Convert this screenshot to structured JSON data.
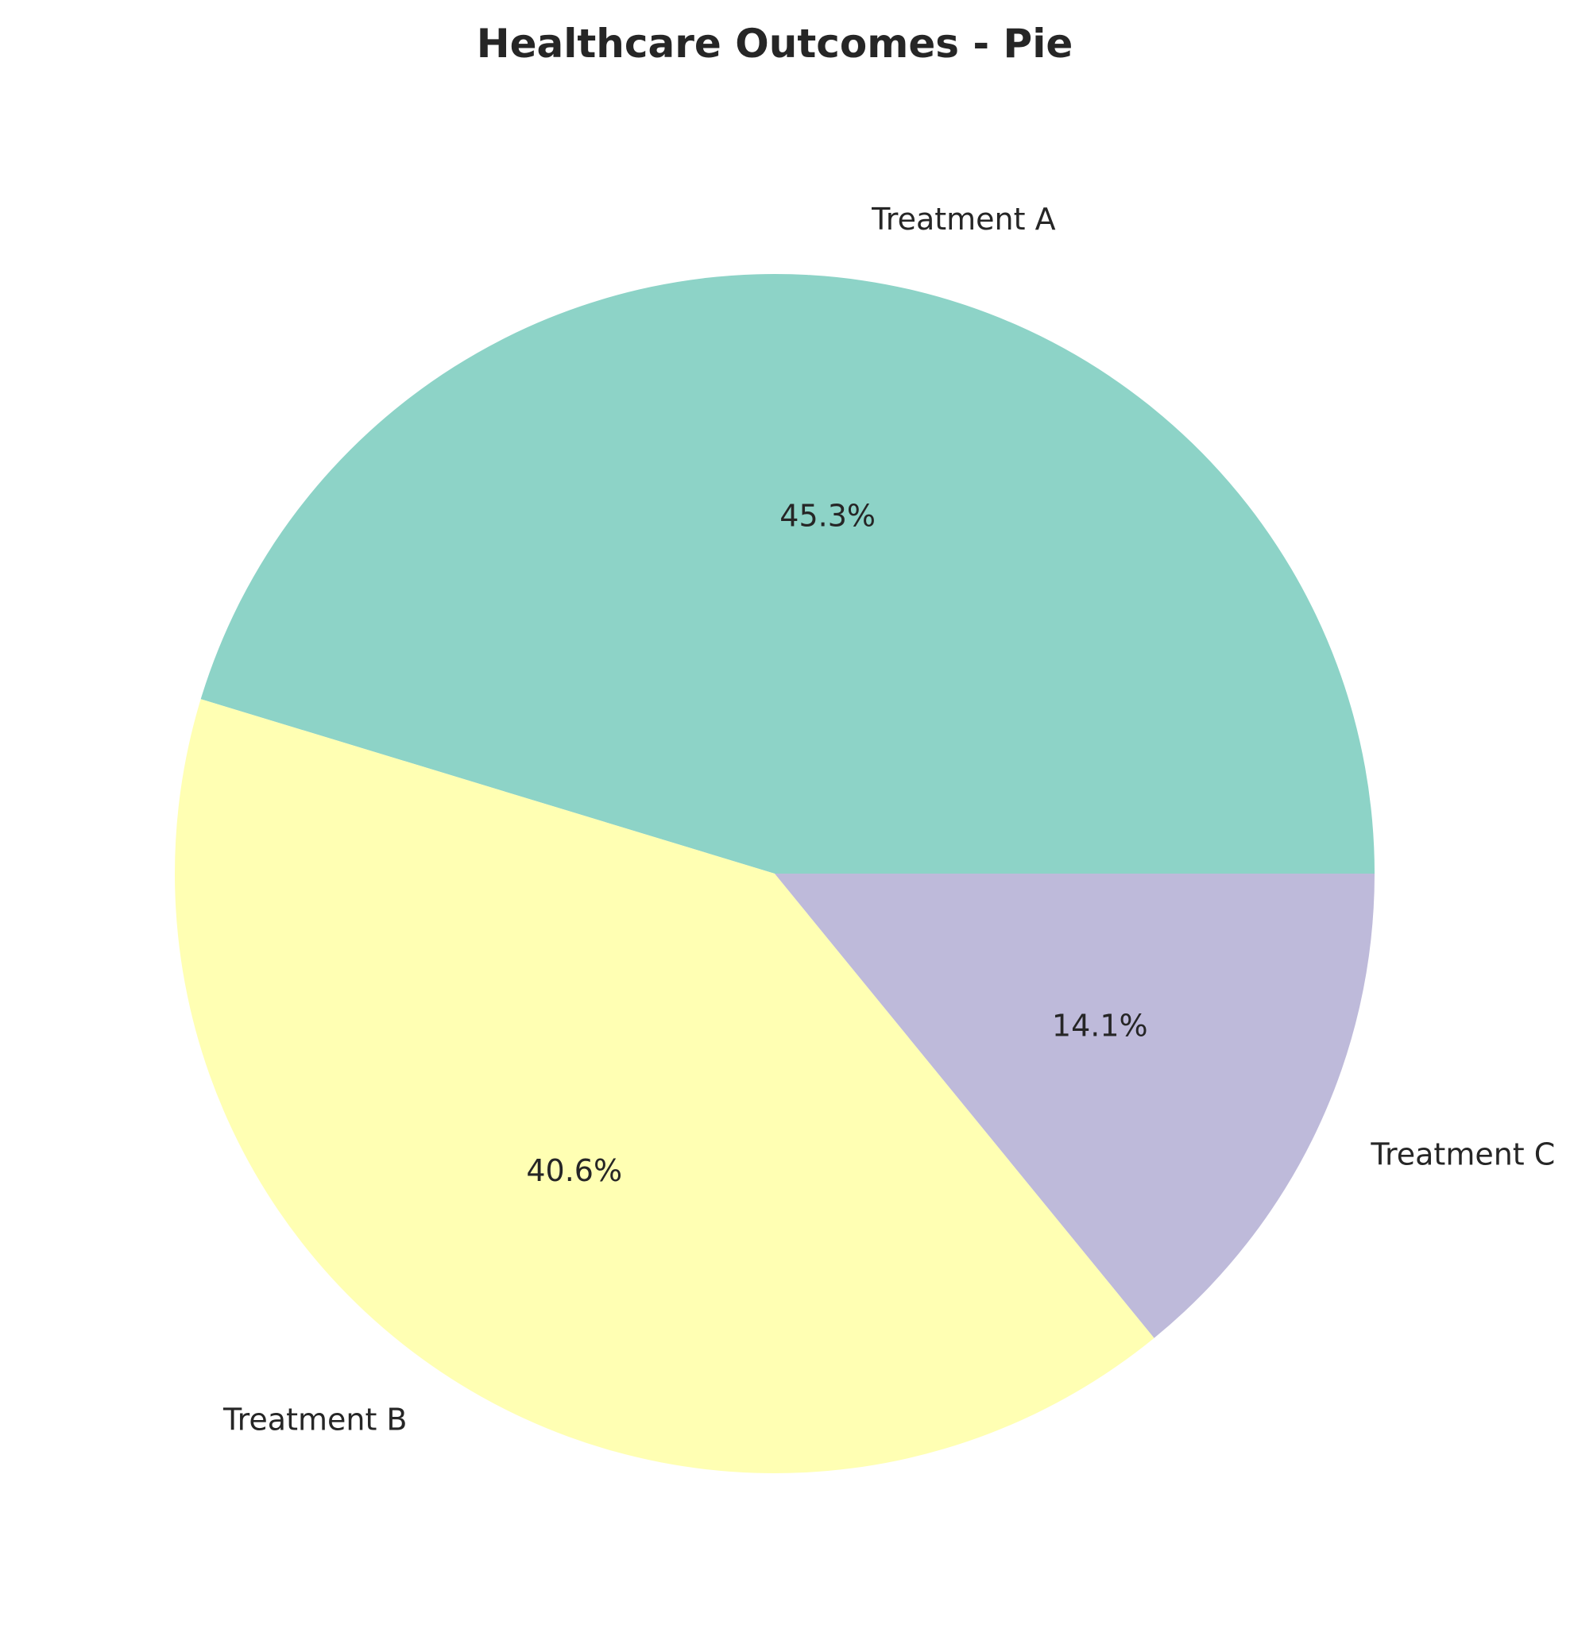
{
  "chart_data": {
    "type": "pie",
    "title": "Healthcare Outcomes - Pie",
    "categories": [
      "Treatment A",
      "Treatment B",
      "Treatment C"
    ],
    "values": [
      45.3,
      40.6,
      14.1
    ],
    "percent_labels": [
      "45.3%",
      "40.6%",
      "14.1%"
    ],
    "colors": [
      "#8dd3c7",
      "#ffffb3",
      "#bebada"
    ],
    "start_angle_deg": 0,
    "direction": "counterclockwise",
    "legend": "none"
  }
}
